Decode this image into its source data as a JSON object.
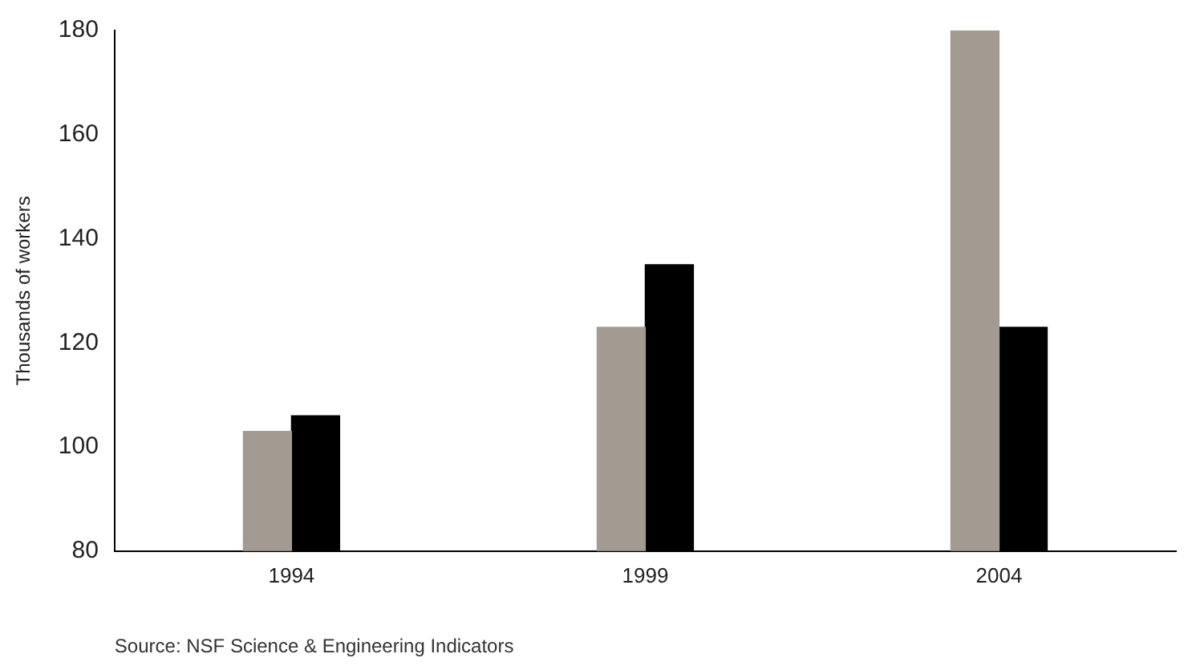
{
  "chart_data": {
    "type": "bar",
    "ylabel": "Thousands of workers",
    "categories": [
      "1994",
      "1999",
      "2004"
    ],
    "series": [
      {
        "color": "#a39b92",
        "values": [
          103,
          123,
          180
        ]
      },
      {
        "color": "#000000",
        "values": [
          106,
          135,
          123
        ]
      }
    ],
    "ylim": [
      80,
      180
    ],
    "yticks": [
      80,
      100,
      120,
      140,
      160,
      180
    ],
    "grid": false,
    "legend": false,
    "annotations": [
      "Source: NSF Science & Engineering Indicators"
    ]
  }
}
